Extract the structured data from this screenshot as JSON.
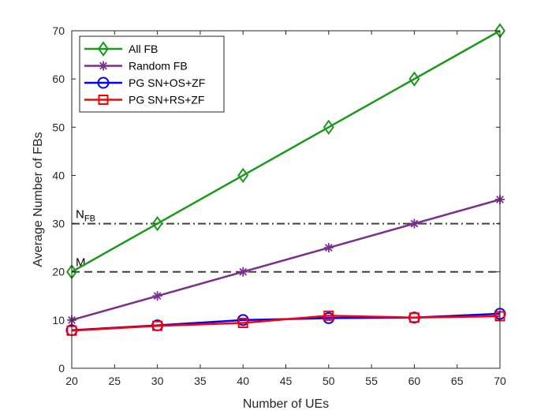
{
  "chart_data": {
    "type": "line",
    "xlabel": "Number of UEs",
    "ylabel": "Average Number of FBs",
    "xlim": [
      20,
      70
    ],
    "ylim": [
      0,
      70
    ],
    "xticks": [
      20,
      25,
      30,
      35,
      40,
      45,
      50,
      55,
      60,
      65,
      70
    ],
    "yticks": [
      0,
      10,
      20,
      30,
      40,
      50,
      60,
      70
    ],
    "grid": false,
    "legend_position": "top-left",
    "series": [
      {
        "name": "All FB",
        "color": "#1a9a1a",
        "marker": "diamond",
        "x": [
          20,
          30,
          40,
          50,
          60,
          70
        ],
        "y": [
          20,
          30,
          40,
          50,
          60,
          70
        ]
      },
      {
        "name": "Random FB",
        "color": "#7a2f8c",
        "marker": "asterisk",
        "x": [
          20,
          30,
          40,
          50,
          60,
          70
        ],
        "y": [
          10,
          15,
          20,
          25,
          30,
          35
        ]
      },
      {
        "name": "PG SN+OS+ZF",
        "color": "#0000ff",
        "marker": "circle",
        "x": [
          20,
          30,
          40,
          50,
          60,
          70
        ],
        "y": [
          7.9,
          8.9,
          10.0,
          10.4,
          10.5,
          11.3
        ]
      },
      {
        "name": "PG SN+RS+ZF",
        "color": "#ff0000",
        "marker": "square",
        "x": [
          20,
          30,
          40,
          50,
          60,
          70
        ],
        "y": [
          7.8,
          8.8,
          9.4,
          10.9,
          10.5,
          10.8
        ]
      }
    ],
    "reference_lines": [
      {
        "label_main": "N",
        "label_sub": "FB",
        "y": 30,
        "style": "dash-dot",
        "color": "#404040"
      },
      {
        "label_main": "M",
        "label_sub": "",
        "y": 20,
        "style": "dashed",
        "color": "#404040"
      }
    ]
  }
}
